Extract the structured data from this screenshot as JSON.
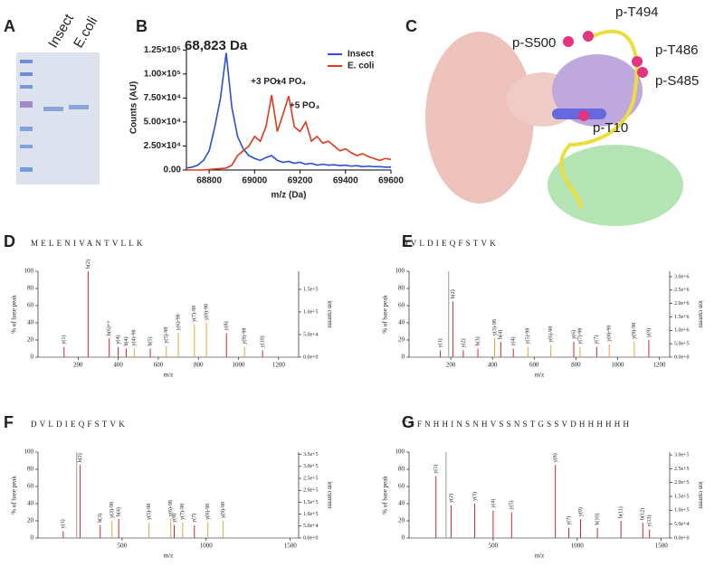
{
  "gel": {
    "panel": "A",
    "lanes": [
      "Insect",
      "E.coli"
    ]
  },
  "structure": {
    "panel": "C",
    "labels": [
      "p-S500",
      "p-T494",
      "p-T486",
      "p-S485",
      "p-T10"
    ]
  },
  "chart_data": [
    {
      "type": "line",
      "panel": "B",
      "xlabel": "m/z (Da)",
      "ylabel": "Counts (AU)",
      "annotations": [
        "68,823 Da",
        "+3 PO₄",
        "+4 PO₄",
        "+5 PO₄"
      ],
      "x": [
        68700,
        68725,
        68750,
        68775,
        68800,
        68825,
        68850,
        68875,
        68900,
        68925,
        68950,
        68975,
        69000,
        69025,
        69050,
        69075,
        69100,
        69125,
        69150,
        69175,
        69200,
        69225,
        69250,
        69275,
        69300,
        69325,
        69350,
        69375,
        69400,
        69425,
        69450,
        69475,
        69500,
        69525,
        69550,
        69575,
        69600
      ],
      "series": [
        {
          "name": "Insect",
          "color": "#2a4fd6",
          "values": [
            2000,
            3000,
            5000,
            10000,
            20000,
            45000,
            75000,
            122000,
            65000,
            35000,
            22000,
            15000,
            12000,
            10000,
            13000,
            15000,
            10000,
            8000,
            9000,
            7000,
            8000,
            6000,
            7000,
            5000,
            6000,
            5000,
            5500,
            4500,
            5000,
            4000,
            4500,
            3500,
            4000,
            3500,
            3500,
            3000,
            3000
          ]
        },
        {
          "name": "E. coli",
          "color": "#e0381c",
          "values": [
            0,
            0,
            0,
            0,
            500,
            1000,
            1500,
            2000,
            5000,
            15000,
            20000,
            25000,
            35000,
            30000,
            45000,
            78000,
            40000,
            58000,
            77000,
            45000,
            40000,
            50000,
            30000,
            35000,
            28000,
            30000,
            25000,
            20000,
            22000,
            18000,
            15000,
            17000,
            14000,
            12000,
            10000,
            12000,
            11000
          ]
        }
      ],
      "xlim": [
        68700,
        69600
      ],
      "xticks": [
        68800,
        69000,
        69200,
        69400,
        69600
      ],
      "ylim": [
        0,
        130000
      ],
      "yticks": [
        {
          "value": 0,
          "label": "0.00"
        },
        {
          "value": 25000,
          "label": "2.50×10⁴"
        },
        {
          "value": 50000,
          "label": "5.00×10⁴"
        },
        {
          "value": 75000,
          "label": "7.50×10⁴"
        },
        {
          "value": 100000,
          "label": "1.00×10⁵"
        },
        {
          "value": 125000,
          "label": "1.25×10⁵"
        }
      ],
      "legend": "top-right"
    },
    {
      "type": "spectrum",
      "panel": "D",
      "sequence": "MELENIVANTVLLK",
      "xlabel": "m/z",
      "ylabel": "% of base peak",
      "y2label": "ion current",
      "x": [
        130,
        250,
        355,
        400,
        440,
        480,
        560,
        640,
        700,
        780,
        840,
        940,
        1030,
        1120
      ],
      "values": [
        12,
        100,
        22,
        12,
        10,
        10,
        10,
        13,
        28,
        38,
        40,
        28,
        12,
        8
      ],
      "peak_labels": [
        "y(1)",
        "b(2)",
        "b(6)++",
        "y(4)",
        "b(4)",
        "y(4)-98",
        "b(5)",
        "y(5)-98",
        "y(6)-98",
        "y(7)-98",
        "y(8)-98",
        "y(8)",
        "y(9)-98",
        "y(10)"
      ],
      "colors": [
        "#cc2a2a",
        "#cc2a2a",
        "#cc2a2a",
        "#cc2a2a",
        "#cc2a2a",
        "#e8a33d",
        "#cc2a2a",
        "#e8a33d",
        "#e8a33d",
        "#e8a33d",
        "#e8a33d",
        "#cc2a2a",
        "#e8a33d",
        "#cc2a2a"
      ],
      "xlim": [
        0,
        1300
      ],
      "xticks": [
        200,
        400,
        600,
        800,
        1000,
        1200
      ],
      "ylim": [
        0,
        100
      ],
      "yticks": [
        0,
        20,
        40,
        60,
        80,
        100
      ],
      "y2lim": [
        0,
        190000
      ],
      "y2ticks": [
        {
          "value": 0,
          "label": "0.0e+0"
        },
        {
          "value": 50000,
          "label": "5.0e+4"
        },
        {
          "value": 100000,
          "label": "1.0e+5"
        },
        {
          "value": 150000,
          "label": "1.5e+5"
        }
      ]
    },
    {
      "type": "spectrum",
      "panel": "E",
      "sequence": "DVLDIEQFSTVK",
      "xlabel": "m/z",
      "ylabel": "% of base peak",
      "y2label": "ion current",
      "x": [
        150,
        190,
        210,
        260,
        330,
        410,
        440,
        500,
        570,
        680,
        790,
        820,
        900,
        960,
        1080,
        1150
      ],
      "values": [
        8,
        100,
        65,
        8,
        10,
        22,
        18,
        10,
        12,
        14,
        18,
        12,
        12,
        15,
        18,
        20
      ],
      "peak_labels": [
        "y(1)",
        null,
        "b(2)",
        "y(2)",
        "b(3)",
        "y(3)-98",
        "b(4)",
        "y(4)",
        "y(5)-98",
        "y(6)-98",
        "y(6)",
        "y(7)-98",
        "y(7)",
        "y(8)-98",
        "y(9)-98",
        "y(9)"
      ],
      "colors": [
        "#cc2a2a",
        "#999999",
        "#cc2a2a",
        "#cc2a2a",
        "#cc2a2a",
        "#e8a33d",
        "#cc2a2a",
        "#cc2a2a",
        "#e8a33d",
        "#e8a33d",
        "#cc2a2a",
        "#e8a33d",
        "#cc2a2a",
        "#e8a33d",
        "#e8a33d",
        "#cc2a2a"
      ],
      "xlim": [
        0,
        1250
      ],
      "xticks": [
        200,
        400,
        600,
        800,
        1000,
        1200
      ],
      "ylim": [
        0,
        100
      ],
      "yticks": [
        0,
        20,
        40,
        60,
        80,
        100
      ],
      "y2lim": [
        0,
        3200000
      ],
      "y2ticks": [
        {
          "value": 0,
          "label": "0.0e+0"
        },
        {
          "value": 500000,
          "label": "5.0e+5"
        },
        {
          "value": 1000000,
          "label": "1.0e+6"
        },
        {
          "value": 1500000,
          "label": "1.5e+6"
        },
        {
          "value": 2000000,
          "label": "2.0e+6"
        },
        {
          "value": 2500000,
          "label": "2.5e+6"
        },
        {
          "value": 3000000,
          "label": "3.0e+6"
        }
      ]
    },
    {
      "type": "spectrum",
      "panel": "F",
      "sequence": "DVLDIEQFSTVK",
      "xlabel": "m/z",
      "ylabel": "% of base peak",
      "y2label": "ion current",
      "x": [
        150,
        230,
        250,
        370,
        440,
        480,
        660,
        790,
        810,
        860,
        930,
        1010,
        1100
      ],
      "values": [
        8,
        100,
        85,
        15,
        20,
        22,
        18,
        22,
        15,
        18,
        15,
        18,
        20
      ],
      "peak_labels": [
        "y(1)",
        null,
        "b(2)",
        "b(3)",
        "y(3)-98",
        "b(4)",
        "y(5)-98",
        "y(6)-98",
        "y(6)",
        "y(7)-98",
        "y(7)",
        "y(8)-98",
        "y(9)-98"
      ],
      "colors": [
        "#cc2a2a",
        "#999999",
        "#cc2a2a",
        "#cc2a2a",
        "#e8a33d",
        "#cc2a2a",
        "#e8a33d",
        "#e8a33d",
        "#cc2a2a",
        "#e8a33d",
        "#cc2a2a",
        "#e8a33d",
        "#e8a33d"
      ],
      "xlim": [
        0,
        1550
      ],
      "xticks": [
        500,
        1000,
        1500
      ],
      "ylim": [
        0,
        100
      ],
      "yticks": [
        0,
        20,
        40,
        60,
        80,
        100
      ],
      "y2lim": [
        0,
        360000
      ],
      "y2ticks": [
        {
          "value": 0,
          "label": "0.0e+0"
        },
        {
          "value": 50000,
          "label": "5.0e+4"
        },
        {
          "value": 100000,
          "label": "1.0e+5"
        },
        {
          "value": 150000,
          "label": "1.5e+5"
        },
        {
          "value": 200000,
          "label": "2.0e+5"
        },
        {
          "value": 250000,
          "label": "2.5e+5"
        },
        {
          "value": 300000,
          "label": "3.0e+5"
        },
        {
          "value": 350000,
          "label": "3.5e+5"
        }
      ]
    },
    {
      "type": "spectrum",
      "panel": "G",
      "sequence": "TSFNHHINSNHVSSNSTGSSVDHHHHHH",
      "xlabel": "m/z",
      "ylabel": "% of base peak",
      "y2label": "ion current",
      "x": [
        160,
        220,
        250,
        390,
        500,
        610,
        870,
        950,
        1020,
        1120,
        1260,
        1390,
        1430
      ],
      "values": [
        72,
        100,
        38,
        40,
        32,
        30,
        85,
        12,
        22,
        12,
        20,
        18,
        10
      ],
      "peak_labels": [
        "y(1)",
        null,
        "y(2)",
        "y(3)",
        "y(4)",
        "y(5)",
        "y(8)",
        "y(7)",
        "y(9)",
        "b(10)",
        "b(11)",
        "b(12)",
        "y(13)"
      ],
      "colors": [
        "#cc2a2a",
        "#999999",
        "#cc2a2a",
        "#cc2a2a",
        "#cc2a2a",
        "#cc2a2a",
        "#cc2a2a",
        "#cc2a2a",
        "#cc2a2a",
        "#cc2a2a",
        "#cc2a2a",
        "#cc2a2a",
        "#cc2a2a"
      ],
      "xlim": [
        0,
        1550
      ],
      "xticks": [
        500,
        1000,
        1500
      ],
      "ylim": [
        0,
        100
      ],
      "yticks": [
        0,
        20,
        40,
        60,
        80,
        100
      ],
      "y2lim": [
        0,
        310000
      ],
      "y2ticks": [
        {
          "value": 0,
          "label": "0.0e+0"
        },
        {
          "value": 50000,
          "label": "5.0e+4"
        },
        {
          "value": 100000,
          "label": "1.0e+5"
        },
        {
          "value": 150000,
          "label": "1.5e+5"
        },
        {
          "value": 200000,
          "label": "2.0e+5"
        },
        {
          "value": 250000,
          "label": "2.5e+5"
        },
        {
          "value": 300000,
          "label": "3.0e+5"
        }
      ]
    }
  ]
}
